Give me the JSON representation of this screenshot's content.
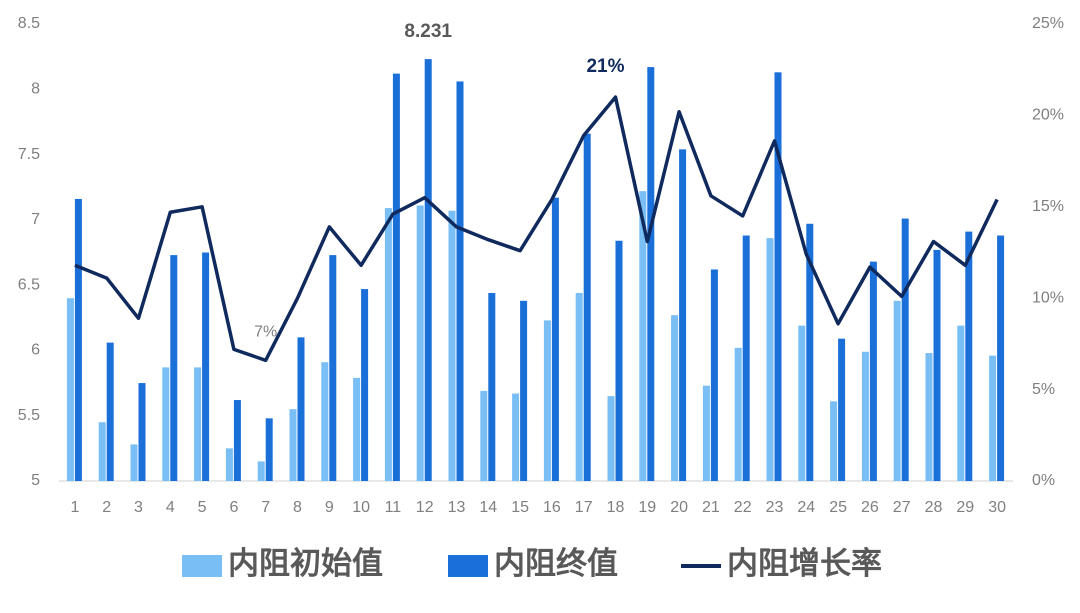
{
  "chart_data": {
    "type": "bar",
    "categories": [
      "1",
      "2",
      "3",
      "4",
      "5",
      "6",
      "7",
      "8",
      "9",
      "10",
      "11",
      "12",
      "13",
      "14",
      "15",
      "16",
      "17",
      "18",
      "19",
      "20",
      "21",
      "22",
      "23",
      "24",
      "25",
      "26",
      "27",
      "28",
      "29",
      "30"
    ],
    "series": [
      {
        "name": "内阻初始值",
        "color": "#79bef5",
        "values": [
          6.4,
          5.45,
          5.28,
          5.87,
          5.87,
          5.25,
          5.15,
          5.55,
          5.91,
          5.79,
          7.09,
          7.11,
          7.07,
          5.69,
          5.67,
          6.23,
          6.44,
          5.65,
          7.22,
          6.27,
          5.73,
          6.02,
          6.86,
          6.19,
          5.61,
          5.99,
          6.38,
          5.98,
          6.19,
          5.96
        ]
      },
      {
        "name": "内阻终值",
        "color": "#1a6fd8",
        "values": [
          7.16,
          6.06,
          5.75,
          6.73,
          6.75,
          5.62,
          5.48,
          6.1,
          6.73,
          6.47,
          8.12,
          8.231,
          8.06,
          6.44,
          6.38,
          7.17,
          7.66,
          6.84,
          8.17,
          7.54,
          6.62,
          6.88,
          8.13,
          6.97,
          6.09,
          6.68,
          7.01,
          6.77,
          6.91,
          6.88
        ],
        "value_labels": [
          null,
          null,
          null,
          null,
          null,
          null,
          null,
          null,
          null,
          null,
          null,
          "8.231",
          null,
          null,
          null,
          null,
          null,
          null,
          null,
          null,
          null,
          null,
          null,
          null,
          null,
          null,
          null,
          null,
          null,
          null
        ]
      },
      {
        "name": "内阻增长率",
        "type": "line",
        "axis": "y2",
        "color": "#102a5e",
        "values": [
          11.8,
          11.1,
          8.9,
          14.7,
          15.0,
          7.2,
          6.6,
          10.0,
          13.9,
          11.8,
          14.6,
          15.5,
          13.9,
          13.2,
          12.6,
          15.4,
          18.9,
          21,
          13.1,
          20.2,
          15.6,
          14.5,
          18.6,
          12.4,
          8.6,
          11.7,
          10.1,
          13.1,
          11.8,
          15.4
        ],
        "value_labels": [
          null,
          null,
          null,
          null,
          null,
          null,
          "7%",
          null,
          null,
          null,
          null,
          null,
          null,
          null,
          null,
          null,
          null,
          "21%",
          null,
          null,
          null,
          null,
          null,
          null,
          null,
          null,
          null,
          null,
          null,
          null
        ]
      }
    ],
    "ylim": [
      5,
      8.5
    ],
    "yticks": [
      5,
      5.5,
      6,
      6.5,
      7,
      7.5,
      8,
      8.5
    ],
    "y2lim": [
      0,
      25
    ],
    "y2ticks": [
      {
        "value": 0,
        "label": "0%"
      },
      {
        "value": 5,
        "label": "5%"
      },
      {
        "value": 10,
        "label": "10%"
      },
      {
        "value": 15,
        "label": "15%"
      },
      {
        "value": 20,
        "label": "20%"
      },
      {
        "value": 25,
        "label": "25%"
      }
    ],
    "grid": false,
    "legend": "bottom"
  }
}
